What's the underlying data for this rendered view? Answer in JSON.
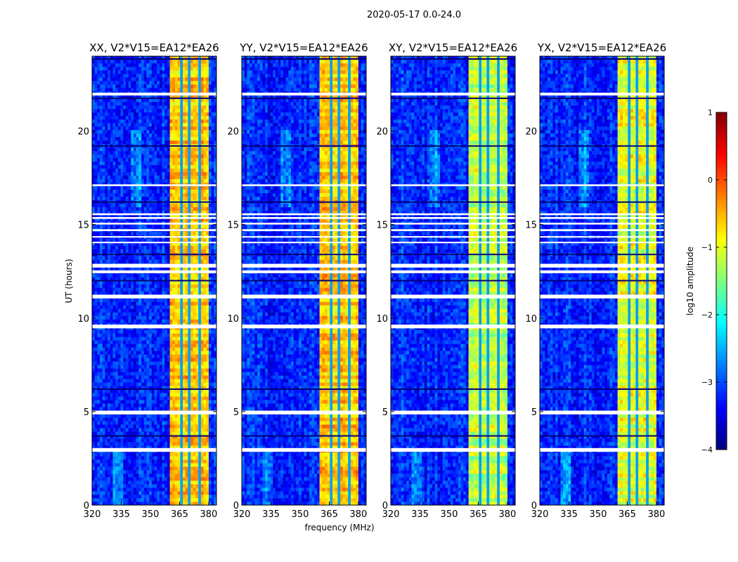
{
  "chart_data": {
    "type": "heatmap",
    "title": "2020-05-17 0.0-24.0",
    "xlabel": "frequency (MHz)",
    "ylabel": "UT (hours)",
    "xlim": [
      320,
      384
    ],
    "ylim": [
      0,
      24
    ],
    "xticks": [
      "320",
      "335",
      "350",
      "365",
      "380"
    ],
    "xtick_values": [
      320,
      335,
      350,
      365,
      380
    ],
    "yticks": [
      "0",
      "5",
      "10",
      "15",
      "20"
    ],
    "ytick_values": [
      0,
      5,
      10,
      15,
      20
    ],
    "panels": [
      {
        "title": "XX, V2*V15=EA12*EA26",
        "band_level": -0.6,
        "background_level": -3.2
      },
      {
        "title": "YY, V2*V15=EA12*EA26",
        "band_level": -0.6,
        "background_level": -3.2
      },
      {
        "title": "XY, V2*V15=EA12*EA26",
        "band_level": -1.2,
        "background_level": -3.2
      },
      {
        "title": "YX, V2*V15=EA12*EA26",
        "band_level": -1.0,
        "background_level": -3.2
      }
    ],
    "rfi_band_mhz": [
      360,
      380
    ],
    "band_gaps_mhz": [
      365.5,
      370.2,
      375.2
    ],
    "flagged_hours": [
      [
        2.85,
        3.05
      ],
      [
        4.85,
        5.05
      ],
      [
        9.45,
        9.65
      ],
      [
        11.05,
        11.25
      ],
      [
        12.4,
        12.55
      ],
      [
        12.7,
        12.9
      ],
      [
        14.0,
        14.08
      ],
      [
        14.3,
        14.38
      ],
      [
        14.65,
        14.75
      ],
      [
        15.0,
        15.1
      ],
      [
        15.3,
        15.4
      ],
      [
        15.5,
        15.6
      ],
      [
        17.05,
        17.15
      ],
      [
        21.9,
        22.05
      ]
    ],
    "dark_hours": [
      3.7,
      6.2,
      12.0,
      13.4,
      16.2,
      19.2,
      21.75,
      23.85
    ],
    "colorbar": {
      "label": "log10 amplitude",
      "range": [
        -4,
        1
      ],
      "ticks": [
        "1",
        "0",
        "−1",
        "−2",
        "−3",
        "−4"
      ],
      "tick_values": [
        1,
        0,
        -1,
        -2,
        -3,
        -4
      ],
      "colormap": "jet"
    }
  }
}
